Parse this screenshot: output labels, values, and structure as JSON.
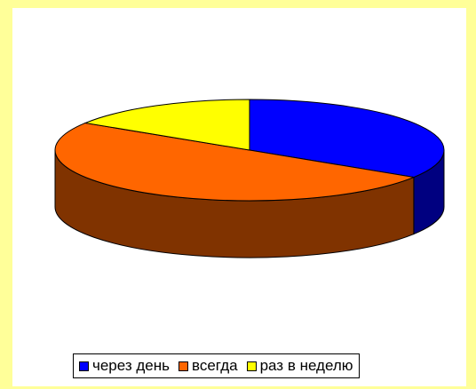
{
  "chart_data": {
    "type": "pie",
    "title": "",
    "slices": [
      {
        "label": "через  день",
        "value": 34,
        "color": "#0000ff",
        "side_color": "#000080"
      },
      {
        "label": "всегда",
        "value": 50,
        "color": "#ff6600",
        "side_color": "#803300"
      },
      {
        "label": "раз  в неделю",
        "value": 16,
        "color": "#ffff00",
        "side_color": "#808000"
      }
    ],
    "legend_position": "bottom",
    "three_d": true
  }
}
